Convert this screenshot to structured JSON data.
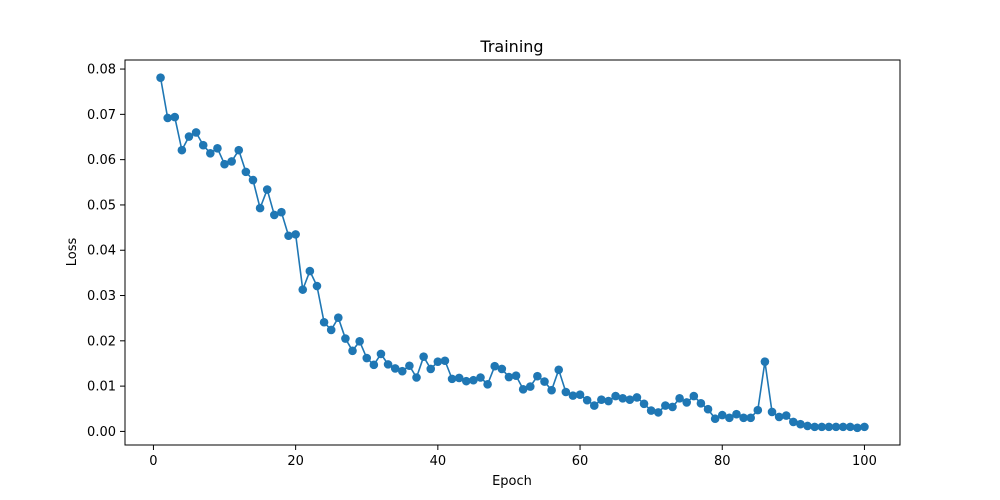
{
  "chart_data": {
    "type": "line",
    "title": "Training",
    "xlabel": "Epoch",
    "ylabel": "Loss",
    "xlim": [
      -4,
      105
    ],
    "ylim": [
      -0.003,
      0.082
    ],
    "grid": false,
    "legend": "none",
    "marker": "circle",
    "color": "#1f77b4",
    "xticks": [
      0,
      20,
      40,
      60,
      80,
      100
    ],
    "yticks": [
      0.0,
      0.01,
      0.02,
      0.03,
      0.04,
      0.05,
      0.06,
      0.07,
      0.08
    ],
    "xtick_labels": [
      "0",
      "20",
      "40",
      "60",
      "80",
      "100"
    ],
    "ytick_labels": [
      "0.00",
      "0.01",
      "0.02",
      "0.03",
      "0.04",
      "0.05",
      "0.06",
      "0.07",
      "0.08"
    ],
    "x": [
      1,
      2,
      3,
      4,
      5,
      6,
      7,
      8,
      9,
      10,
      11,
      12,
      13,
      14,
      15,
      16,
      17,
      18,
      19,
      20,
      21,
      22,
      23,
      24,
      25,
      26,
      27,
      28,
      29,
      30,
      31,
      32,
      33,
      34,
      35,
      36,
      37,
      38,
      39,
      40,
      41,
      42,
      43,
      44,
      45,
      46,
      47,
      48,
      49,
      50,
      51,
      52,
      53,
      54,
      55,
      56,
      57,
      58,
      59,
      60,
      61,
      62,
      63,
      64,
      65,
      66,
      67,
      68,
      69,
      70,
      71,
      72,
      73,
      74,
      75,
      76,
      77,
      78,
      79,
      80,
      81,
      82,
      83,
      84,
      85,
      86,
      87,
      88,
      89,
      90,
      91,
      92,
      93,
      94,
      95,
      96,
      97,
      98,
      99,
      100
    ],
    "y": [
      0.0781,
      0.0692,
      0.0694,
      0.0621,
      0.0651,
      0.066,
      0.0632,
      0.0614,
      0.0625,
      0.059,
      0.0596,
      0.0621,
      0.0573,
      0.0555,
      0.0493,
      0.0534,
      0.0478,
      0.0484,
      0.0432,
      0.0435,
      0.0313,
      0.0354,
      0.0321,
      0.0241,
      0.0224,
      0.0251,
      0.0205,
      0.0178,
      0.0199,
      0.0162,
      0.0147,
      0.0171,
      0.0148,
      0.0139,
      0.0133,
      0.0145,
      0.0119,
      0.0165,
      0.0138,
      0.0154,
      0.0156,
      0.0116,
      0.0118,
      0.0111,
      0.0113,
      0.0119,
      0.0104,
      0.0144,
      0.0138,
      0.012,
      0.0123,
      0.0093,
      0.0099,
      0.0122,
      0.011,
      0.0091,
      0.0136,
      0.0087,
      0.0079,
      0.0081,
      0.0069,
      0.0057,
      0.007,
      0.0067,
      0.0078,
      0.0073,
      0.007,
      0.0075,
      0.0061,
      0.0046,
      0.0042,
      0.0057,
      0.0054,
      0.0073,
      0.0064,
      0.0078,
      0.0062,
      0.0049,
      0.0028,
      0.0036,
      0.003,
      0.0038,
      0.003,
      0.003,
      0.0047,
      0.0154,
      0.0043,
      0.0032,
      0.0035,
      0.0021,
      0.0016,
      0.0012,
      0.001,
      0.001,
      0.001,
      0.001,
      0.001,
      0.001,
      0.0008,
      0.001
    ]
  }
}
